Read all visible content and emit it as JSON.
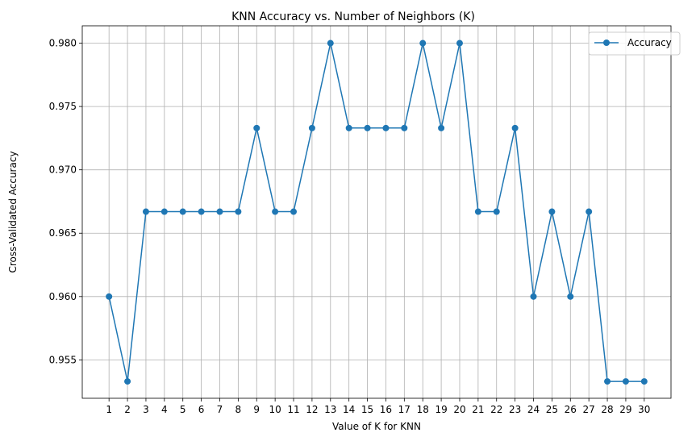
{
  "chart_data": {
    "type": "line",
    "title": "KNN Accuracy vs. Number of Neighbors (K)",
    "xlabel": "Value of K for KNN",
    "ylabel": "Cross-Validated Accuracy",
    "x": [
      1,
      2,
      3,
      4,
      5,
      6,
      7,
      8,
      9,
      10,
      11,
      12,
      13,
      14,
      15,
      16,
      17,
      18,
      19,
      20,
      21,
      22,
      23,
      24,
      25,
      26,
      27,
      28,
      29,
      30
    ],
    "series": [
      {
        "name": "Accuracy",
        "color": "#1f77b4",
        "marker": "circle",
        "values": [
          0.96,
          0.9533,
          0.9667,
          0.9667,
          0.9667,
          0.9667,
          0.9667,
          0.9667,
          0.9733,
          0.9667,
          0.9667,
          0.9733,
          0.98,
          0.9733,
          0.9733,
          0.9733,
          0.9733,
          0.98,
          0.9733,
          0.98,
          0.9667,
          0.9667,
          0.9733,
          0.96,
          0.9667,
          0.96,
          0.9667,
          0.9533,
          0.9533,
          0.9533
        ]
      }
    ],
    "xticks": [
      "1",
      "2",
      "3",
      "4",
      "5",
      "6",
      "7",
      "8",
      "9",
      "10",
      "11",
      "12",
      "13",
      "14",
      "15",
      "16",
      "17",
      "18",
      "19",
      "20",
      "21",
      "22",
      "23",
      "24",
      "25",
      "26",
      "27",
      "28",
      "29",
      "30"
    ],
    "yticks": [
      "0.955",
      "0.960",
      "0.965",
      "0.970",
      "0.975",
      "0.980"
    ],
    "ytick_values": [
      0.955,
      0.96,
      0.965,
      0.97,
      0.975,
      0.98
    ],
    "xlim": [
      -0.45,
      31.45
    ],
    "ylim": [
      0.95197,
      0.98137
    ],
    "grid": true,
    "legend_position": "top-right"
  }
}
